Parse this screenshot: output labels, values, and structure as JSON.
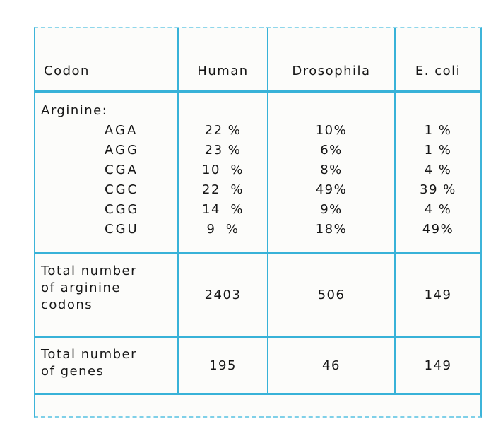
{
  "table": {
    "headers": {
      "codon": "Codon",
      "human": "Human",
      "drosophila": "Drosophila",
      "ecoli": "E. coli"
    },
    "amino_acid": "Arginine:",
    "codon_rows": [
      {
        "codon": "AGA",
        "human": "22 %",
        "drosophila": "10%",
        "ecoli": "1 %"
      },
      {
        "codon": "AGG",
        "human": "23 %",
        "drosophila": "6%",
        "ecoli": "1 %"
      },
      {
        "codon": "CGA",
        "human": "10  %",
        "drosophila": "8%",
        "ecoli": "4 %"
      },
      {
        "codon": "CGC",
        "human": "22  %",
        "drosophila": "49%",
        "ecoli": "39 %"
      },
      {
        "codon": "CGG",
        "human": "14  %",
        "drosophila": "9%",
        "ecoli": "4 %"
      },
      {
        "codon": "CGU",
        "human": "9  %",
        "drosophila": "18%",
        "ecoli": "49%"
      }
    ],
    "total_codons": {
      "label_lines": [
        "Total number",
        "of arginine",
        "codons"
      ],
      "human": "2403",
      "drosophila": "506",
      "ecoli": "149"
    },
    "total_genes": {
      "label_lines": [
        "Total number",
        "of genes"
      ],
      "human": "195",
      "drosophila": "46",
      "ecoli": "149"
    }
  },
  "colors": {
    "border": "#38b2d8",
    "border_light_dashed": "#8fd7ec",
    "text": "#161616",
    "cell_background": "#fcfcfa",
    "page_background": "#ffffff"
  }
}
